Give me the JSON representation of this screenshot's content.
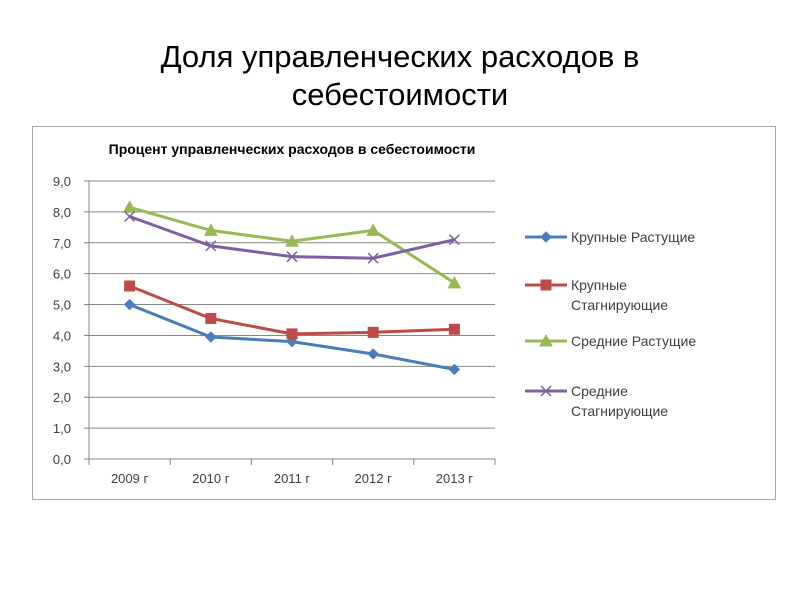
{
  "slide": {
    "title_line1": "Доля управленческих расходов в",
    "title_line2": "себестоимости"
  },
  "chart_data": {
    "type": "line",
    "title": "Процент управленческих расходов в себестоимости",
    "categories": [
      "2009 г",
      "2010 г",
      "2011 г",
      "2012 г",
      "2013 г"
    ],
    "ylim": [
      0,
      9
    ],
    "yticks": [
      "0,0",
      "1,0",
      "2,0",
      "3,0",
      "4,0",
      "5,0",
      "6,0",
      "7,0",
      "8,0",
      "9,0"
    ],
    "grid": true,
    "legend_position": "right",
    "series": [
      {
        "name_line1": "Крупные Растущие",
        "name_line2": "",
        "values": [
          5.0,
          3.95,
          3.8,
          3.4,
          2.9
        ],
        "color": "#4a7ebb",
        "marker": "diamond"
      },
      {
        "name_line1": "Крупные",
        "name_line2": "Стагнирующие",
        "values": [
          5.6,
          4.55,
          4.05,
          4.1,
          4.2
        ],
        "color": "#be4b48",
        "marker": "square"
      },
      {
        "name_line1": "Средние Растущие",
        "name_line2": "",
        "values": [
          8.15,
          7.4,
          7.05,
          7.4,
          5.7
        ],
        "color": "#98b954",
        "marker": "triangle"
      },
      {
        "name_line1": "Средние",
        "name_line2": "Стагнирующие",
        "values": [
          7.85,
          6.9,
          6.55,
          6.5,
          7.1
        ],
        "color": "#7d60a0",
        "marker": "x"
      }
    ]
  }
}
